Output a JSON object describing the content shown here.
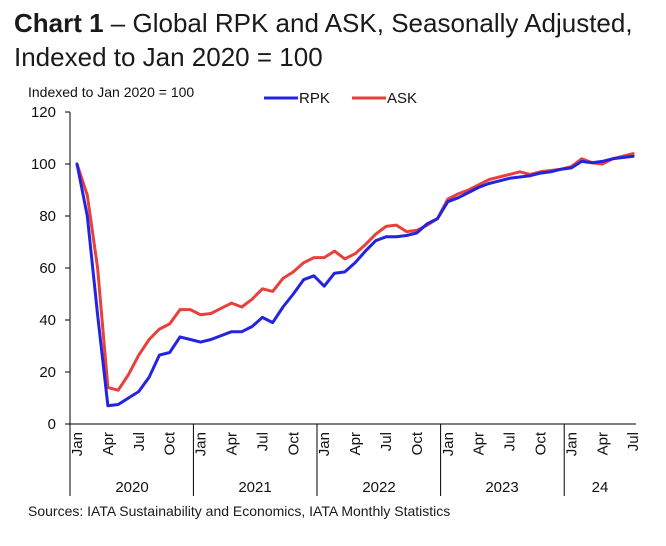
{
  "title": {
    "prefix": "Chart 1",
    "text": " – Global RPK and ASK, Seasonally Adjusted, Indexed to Jan 2020 = 100"
  },
  "source": "Sources: IATA Sustainability and Economics, IATA Monthly Statistics",
  "chart_data": {
    "type": "line",
    "ylabel": "Indexed to Jan 2020 = 100",
    "ylim": [
      0,
      120
    ],
    "yticks": [
      0,
      20,
      40,
      60,
      80,
      100,
      120
    ],
    "grid": false,
    "legend_position": "top-center",
    "colors": {
      "RPK": "#2424e0",
      "ASK": "#e8403a"
    },
    "month_ticks": [
      "Jan",
      "Apr",
      "Jul",
      "Oct",
      "Jan",
      "Apr",
      "Jul",
      "Oct",
      "Jan",
      "Apr",
      "Jul",
      "Oct",
      "Jan",
      "Apr",
      "Jul",
      "Oct",
      "Jan",
      "Apr",
      "Jul"
    ],
    "years": [
      "2020",
      "2021",
      "2022",
      "2023",
      "24"
    ],
    "x": [
      "2020-01",
      "2020-02",
      "2020-03",
      "2020-04",
      "2020-05",
      "2020-06",
      "2020-07",
      "2020-08",
      "2020-09",
      "2020-10",
      "2020-11",
      "2020-12",
      "2021-01",
      "2021-02",
      "2021-03",
      "2021-04",
      "2021-05",
      "2021-06",
      "2021-07",
      "2021-08",
      "2021-09",
      "2021-10",
      "2021-11",
      "2021-12",
      "2022-01",
      "2022-02",
      "2022-03",
      "2022-04",
      "2022-05",
      "2022-06",
      "2022-07",
      "2022-08",
      "2022-09",
      "2022-10",
      "2022-11",
      "2022-12",
      "2023-01",
      "2023-02",
      "2023-03",
      "2023-04",
      "2023-05",
      "2023-06",
      "2023-07",
      "2023-08",
      "2023-09",
      "2023-10",
      "2023-11",
      "2023-12",
      "2024-01",
      "2024-02",
      "2024-03",
      "2024-04",
      "2024-05",
      "2024-06",
      "2024-07"
    ],
    "series": [
      {
        "name": "RPK",
        "values": [
          100,
          80,
          42,
          7,
          7.5,
          10,
          12.5,
          18,
          26.5,
          27.5,
          33.5,
          32.5,
          31.5,
          32.5,
          34,
          35.5,
          35.5,
          37.5,
          41,
          39,
          45,
          50,
          55.5,
          57,
          53,
          58,
          58.5,
          62,
          66.5,
          70.5,
          72,
          72,
          72.5,
          73.5,
          77,
          79,
          85.5,
          87,
          89,
          91,
          92.5,
          93.5,
          94.5,
          95,
          95.5,
          96.5,
          97,
          98,
          98.5,
          101,
          100.5,
          101,
          102,
          102.5,
          103
        ]
      },
      {
        "name": "ASK",
        "values": [
          100,
          88,
          60,
          14,
          13,
          19,
          26.5,
          32.5,
          36.5,
          38.5,
          44,
          44,
          42,
          42.5,
          44.5,
          46.5,
          45,
          48,
          52,
          51,
          56,
          58.5,
          62,
          64,
          64,
          66.5,
          63.5,
          65.5,
          69,
          73,
          76,
          76.5,
          74,
          74.5,
          76.5,
          79,
          86.5,
          88.5,
          90,
          92,
          94,
          95,
          96,
          97,
          96,
          97,
          97.5,
          98,
          99,
          102,
          100.5,
          100,
          102,
          103,
          104
        ]
      }
    ]
  }
}
